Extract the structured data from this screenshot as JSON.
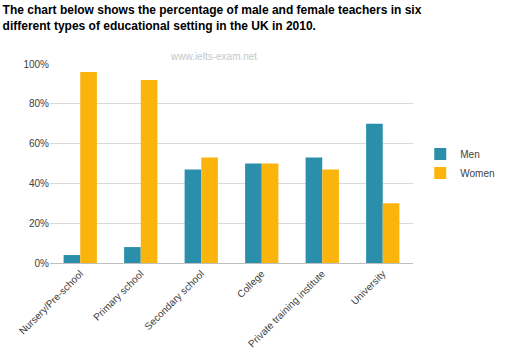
{
  "chart_data": {
    "type": "bar",
    "title": "The chart below shows the percentage of male and female teachers in six different types of educational setting in the UK in 2010.",
    "annotations": [
      "www.ielts-exam.net"
    ],
    "categories": [
      "Nursery/Pre-school",
      "Primary school",
      "Secondary school",
      "College",
      "Private training institute",
      "University"
    ],
    "series": [
      {
        "name": "Men",
        "color": "#2b8fab",
        "values": [
          4,
          8,
          47,
          50,
          53,
          70
        ]
      },
      {
        "name": "Women",
        "color": "#fbb40c",
        "values": [
          96,
          92,
          53,
          50,
          47,
          30
        ]
      }
    ],
    "ylim": [
      0,
      100
    ],
    "yticks": [
      {
        "value": 0,
        "label": "0%"
      },
      {
        "value": 20,
        "label": "20%"
      },
      {
        "value": 40,
        "label": "40%"
      },
      {
        "value": 60,
        "label": "60%"
      },
      {
        "value": 80,
        "label": "80%"
      },
      {
        "value": 100,
        "label": "100%"
      }
    ],
    "grid": true,
    "legend": "right"
  }
}
